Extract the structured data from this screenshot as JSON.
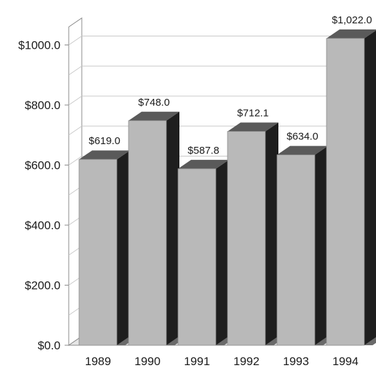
{
  "chart_data": {
    "type": "bar",
    "style": "3d",
    "categories": [
      "1989",
      "1990",
      "1991",
      "1992",
      "1993",
      "1994"
    ],
    "values": [
      619.0,
      748.0,
      587.8,
      712.1,
      634.0,
      1022.0
    ],
    "data_labels": [
      "$619.0",
      "$748.0",
      "$587.8",
      "$712.1",
      "$634.0",
      "$1,022.0"
    ],
    "y_ticks": [
      0,
      200,
      400,
      600,
      800,
      1000
    ],
    "y_tick_labels": [
      "$0.0",
      "$200.0",
      "$400.0",
      "$600.0",
      "$800.0",
      "$1000.0"
    ],
    "ylim": [
      0,
      1000
    ],
    "title": "",
    "xlabel": "",
    "ylabel": "",
    "grid": true,
    "colors": {
      "bar_front": "#b9b9b9",
      "bar_side": "#1e1e1e",
      "bar_top": "#5a5a5a",
      "grid": "#c8c8c8",
      "axis": "#888888"
    }
  }
}
